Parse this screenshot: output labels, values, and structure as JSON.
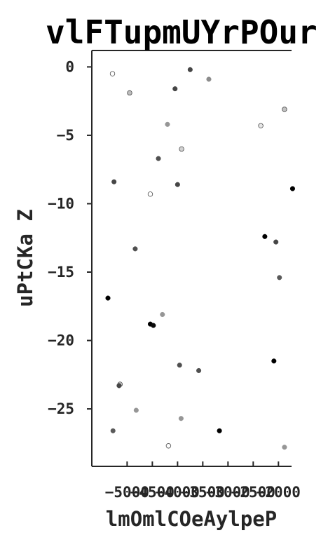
{
  "chart_data": {
    "type": "scatter",
    "title": "vlFTupmUYrPOur",
    "xlabel": "lmOmlCOeAylpeP",
    "ylabel": "uPtCKa Z",
    "xlim": [
      -5700,
      -1740
    ],
    "ylim": [
      -29.2,
      1.2
    ],
    "xticks": [
      -5000,
      -4500,
      -4000,
      -3500,
      -3000,
      -2500,
      -2000
    ],
    "yticks": [
      0,
      -5,
      -10,
      -15,
      -20,
      -25
    ],
    "grid": false,
    "points": [
      {
        "x": -5290,
        "y": -0.5,
        "shade": 255
      },
      {
        "x": -4950,
        "y": -1.9,
        "shade": 190
      },
      {
        "x": -3750,
        "y": -0.2,
        "shade": 70
      },
      {
        "x": -3380,
        "y": -0.9,
        "shade": 140
      },
      {
        "x": -4050,
        "y": -1.6,
        "shade": 70
      },
      {
        "x": -1880,
        "y": -3.1,
        "shade": 195
      },
      {
        "x": -4200,
        "y": -4.2,
        "shade": 150
      },
      {
        "x": -2350,
        "y": -4.3,
        "shade": 230
      },
      {
        "x": -3920,
        "y": -6.0,
        "shade": 210
      },
      {
        "x": -4380,
        "y": -6.7,
        "shade": 80
      },
      {
        "x": -5260,
        "y": -8.4,
        "shade": 70
      },
      {
        "x": -4000,
        "y": -8.6,
        "shade": 70
      },
      {
        "x": -4540,
        "y": -9.3,
        "shade": 255
      },
      {
        "x": -1720,
        "y": -8.9,
        "shade": 0
      },
      {
        "x": -2270,
        "y": -12.4,
        "shade": 0
      },
      {
        "x": -2050,
        "y": -12.8,
        "shade": 70
      },
      {
        "x": -4840,
        "y": -13.3,
        "shade": 80
      },
      {
        "x": -1980,
        "y": -15.4,
        "shade": 90
      },
      {
        "x": -5380,
        "y": -16.9,
        "shade": 0
      },
      {
        "x": -4300,
        "y": -18.1,
        "shade": 150
      },
      {
        "x": -4540,
        "y": -18.8,
        "shade": 0
      },
      {
        "x": -4480,
        "y": -18.9,
        "shade": 10
      },
      {
        "x": -2090,
        "y": -21.5,
        "shade": 0
      },
      {
        "x": -3960,
        "y": -21.8,
        "shade": 80
      },
      {
        "x": -3580,
        "y": -22.2,
        "shade": 80
      },
      {
        "x": -5140,
        "y": -23.2,
        "shade": 200
      },
      {
        "x": -5160,
        "y": -23.3,
        "shade": 70
      },
      {
        "x": -4820,
        "y": -25.1,
        "shade": 150
      },
      {
        "x": -3930,
        "y": -25.7,
        "shade": 150
      },
      {
        "x": -5280,
        "y": -26.6,
        "shade": 90
      },
      {
        "x": -3170,
        "y": -26.6,
        "shade": 0
      },
      {
        "x": -4180,
        "y": -27.7,
        "shade": 255
      },
      {
        "x": -1880,
        "y": -27.8,
        "shade": 150
      }
    ]
  }
}
